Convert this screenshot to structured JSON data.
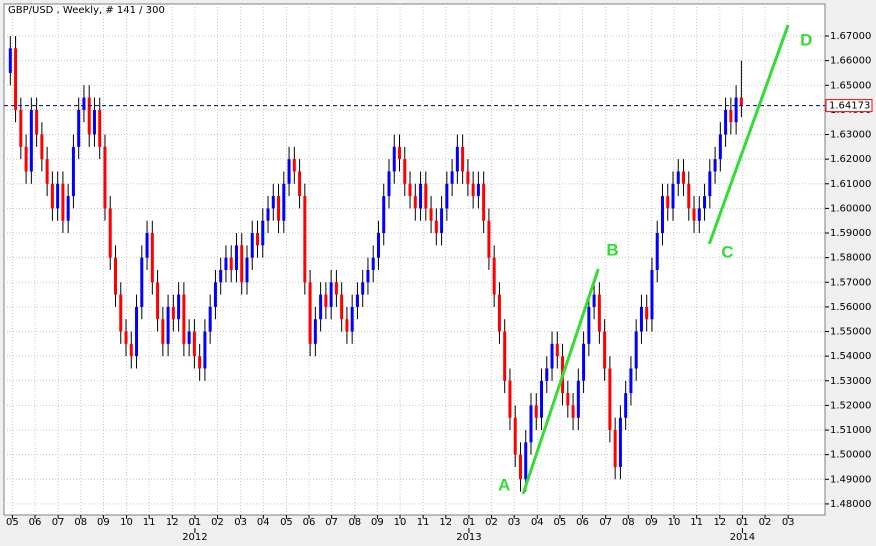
{
  "chart_data": {
    "type": "candlestick",
    "title": "GBP/USD , Weekly, # 141 / 300",
    "up_color": "#0000ff",
    "down_color": "#ff0000",
    "wick_color": "#000000",
    "grid": true,
    "open": [
      1.655,
      1.665,
      1.64,
      1.625,
      1.615,
      1.64,
      1.63,
      1.62,
      1.61,
      1.6,
      1.61,
      1.595,
      1.605,
      1.625,
      1.64,
      1.645,
      1.63,
      1.64,
      1.625,
      1.6,
      1.58,
      1.565,
      1.55,
      1.545,
      1.54,
      1.56,
      1.58,
      1.59,
      1.57,
      1.555,
      1.545,
      1.56,
      1.555,
      1.565,
      1.545,
      1.55,
      1.54,
      1.535,
      1.55,
      1.56,
      1.57,
      1.575,
      1.58,
      1.575,
      1.585,
      1.57,
      1.58,
      1.59,
      1.585,
      1.595,
      1.6,
      1.605,
      1.595,
      1.61,
      1.62,
      1.615,
      1.605,
      1.57,
      1.545,
      1.555,
      1.565,
      1.56,
      1.57,
      1.565,
      1.555,
      1.55,
      1.56,
      1.565,
      1.57,
      1.575,
      1.58,
      1.59,
      1.605,
      1.615,
      1.625,
      1.62,
      1.61,
      1.605,
      1.6,
      1.61,
      1.6,
      1.595,
      1.59,
      1.6,
      1.61,
      1.615,
      1.625,
      1.615,
      1.61,
      1.605,
      1.61,
      1.595,
      1.58,
      1.565,
      1.55,
      1.53,
      1.515,
      1.5,
      1.49,
      1.505,
      1.52,
      1.515,
      1.53,
      1.535,
      1.545,
      1.54,
      1.525,
      1.52,
      1.515,
      1.53,
      1.545,
      1.56,
      1.565,
      1.55,
      1.535,
      1.51,
      1.495,
      1.515,
      1.525,
      1.535,
      1.55,
      1.56,
      1.555,
      1.575,
      1.59,
      1.605,
      1.6,
      1.61,
      1.615,
      1.61,
      1.6,
      1.595,
      1.6,
      1.605,
      1.615,
      1.62,
      1.63,
      1.64,
      1.635,
      1.645
    ],
    "high": [
      1.67,
      1.67,
      1.645,
      1.63,
      1.645,
      1.645,
      1.635,
      1.625,
      1.615,
      1.615,
      1.615,
      1.61,
      1.63,
      1.645,
      1.65,
      1.65,
      1.645,
      1.645,
      1.63,
      1.605,
      1.585,
      1.57,
      1.555,
      1.55,
      1.565,
      1.585,
      1.595,
      1.595,
      1.575,
      1.56,
      1.565,
      1.565,
      1.57,
      1.57,
      1.555,
      1.555,
      1.545,
      1.555,
      1.565,
      1.575,
      1.58,
      1.585,
      1.585,
      1.59,
      1.59,
      1.585,
      1.595,
      1.595,
      1.6,
      1.605,
      1.61,
      1.61,
      1.615,
      1.625,
      1.625,
      1.62,
      1.61,
      1.575,
      1.56,
      1.57,
      1.57,
      1.575,
      1.575,
      1.57,
      1.56,
      1.565,
      1.57,
      1.575,
      1.58,
      1.585,
      1.595,
      1.61,
      1.62,
      1.63,
      1.63,
      1.625,
      1.615,
      1.61,
      1.615,
      1.615,
      1.605,
      1.6,
      1.605,
      1.615,
      1.62,
      1.63,
      1.63,
      1.62,
      1.615,
      1.615,
      1.615,
      1.6,
      1.585,
      1.57,
      1.555,
      1.535,
      1.52,
      1.505,
      1.51,
      1.525,
      1.525,
      1.535,
      1.54,
      1.55,
      1.55,
      1.545,
      1.53,
      1.525,
      1.535,
      1.55,
      1.565,
      1.57,
      1.57,
      1.555,
      1.54,
      1.515,
      1.52,
      1.53,
      1.54,
      1.555,
      1.565,
      1.565,
      1.58,
      1.595,
      1.61,
      1.61,
      1.615,
      1.62,
      1.62,
      1.615,
      1.605,
      1.605,
      1.61,
      1.62,
      1.625,
      1.635,
      1.645,
      1.645,
      1.65,
      1.66
    ],
    "low": [
      1.65,
      1.635,
      1.62,
      1.61,
      1.61,
      1.625,
      1.615,
      1.605,
      1.595,
      1.595,
      1.59,
      1.59,
      1.6,
      1.62,
      1.635,
      1.625,
      1.625,
      1.62,
      1.595,
      1.575,
      1.56,
      1.545,
      1.54,
      1.535,
      1.535,
      1.555,
      1.575,
      1.565,
      1.55,
      1.54,
      1.54,
      1.55,
      1.55,
      1.54,
      1.54,
      1.535,
      1.53,
      1.53,
      1.545,
      1.555,
      1.565,
      1.57,
      1.57,
      1.57,
      1.565,
      1.565,
      1.575,
      1.58,
      1.58,
      1.59,
      1.595,
      1.59,
      1.59,
      1.605,
      1.61,
      1.6,
      1.565,
      1.54,
      1.54,
      1.55,
      1.555,
      1.555,
      1.56,
      1.55,
      1.545,
      1.545,
      1.555,
      1.56,
      1.565,
      1.57,
      1.575,
      1.585,
      1.6,
      1.61,
      1.615,
      1.605,
      1.6,
      1.595,
      1.595,
      1.595,
      1.59,
      1.585,
      1.585,
      1.595,
      1.605,
      1.61,
      1.61,
      1.605,
      1.6,
      1.6,
      1.59,
      1.575,
      1.56,
      1.545,
      1.525,
      1.51,
      1.495,
      1.485,
      1.485,
      1.5,
      1.51,
      1.51,
      1.525,
      1.53,
      1.535,
      1.52,
      1.515,
      1.51,
      1.51,
      1.525,
      1.54,
      1.555,
      1.545,
      1.53,
      1.505,
      1.49,
      1.49,
      1.51,
      1.52,
      1.53,
      1.545,
      1.55,
      1.55,
      1.57,
      1.585,
      1.595,
      1.595,
      1.605,
      1.605,
      1.595,
      1.59,
      1.59,
      1.595,
      1.6,
      1.61,
      1.615,
      1.625,
      1.63,
      1.63,
      1.637
    ],
    "close": [
      1.665,
      1.64,
      1.625,
      1.615,
      1.64,
      1.63,
      1.62,
      1.61,
      1.6,
      1.61,
      1.595,
      1.605,
      1.625,
      1.64,
      1.645,
      1.63,
      1.64,
      1.625,
      1.6,
      1.58,
      1.565,
      1.55,
      1.545,
      1.54,
      1.56,
      1.58,
      1.59,
      1.57,
      1.555,
      1.545,
      1.56,
      1.555,
      1.565,
      1.545,
      1.55,
      1.54,
      1.535,
      1.55,
      1.56,
      1.57,
      1.575,
      1.58,
      1.575,
      1.585,
      1.57,
      1.58,
      1.59,
      1.585,
      1.595,
      1.6,
      1.605,
      1.595,
      1.61,
      1.62,
      1.615,
      1.605,
      1.57,
      1.545,
      1.555,
      1.565,
      1.56,
      1.57,
      1.565,
      1.555,
      1.55,
      1.56,
      1.565,
      1.57,
      1.575,
      1.58,
      1.59,
      1.605,
      1.615,
      1.625,
      1.62,
      1.61,
      1.605,
      1.6,
      1.61,
      1.6,
      1.595,
      1.59,
      1.6,
      1.61,
      1.615,
      1.625,
      1.615,
      1.61,
      1.605,
      1.61,
      1.595,
      1.58,
      1.565,
      1.55,
      1.53,
      1.515,
      1.5,
      1.49,
      1.505,
      1.52,
      1.515,
      1.53,
      1.535,
      1.545,
      1.54,
      1.525,
      1.52,
      1.515,
      1.53,
      1.545,
      1.56,
      1.565,
      1.55,
      1.535,
      1.51,
      1.495,
      1.515,
      1.525,
      1.535,
      1.55,
      1.56,
      1.555,
      1.575,
      1.59,
      1.605,
      1.6,
      1.61,
      1.615,
      1.61,
      1.6,
      1.595,
      1.6,
      1.605,
      1.615,
      1.62,
      1.63,
      1.64,
      1.635,
      1.645,
      1.642
    ],
    "xlim": [
      -1.2,
      154.9
    ],
    "ylim": [
      1.4755,
      1.683
    ],
    "xticks": [
      {
        "value": 0.4,
        "label": "05"
      },
      {
        "value": 4.7,
        "label": "06"
      },
      {
        "value": 9.1,
        "label": "07"
      },
      {
        "value": 13.4,
        "label": "08"
      },
      {
        "value": 17.7,
        "label": "09"
      },
      {
        "value": 22.1,
        "label": "10"
      },
      {
        "value": 26.4,
        "label": "11"
      },
      {
        "value": 30.8,
        "label": "12"
      },
      {
        "value": 35.1,
        "label": "01"
      },
      {
        "value": 39.4,
        "label": "02"
      },
      {
        "value": 43.8,
        "label": "03"
      },
      {
        "value": 48.1,
        "label": "04"
      },
      {
        "value": 52.5,
        "label": "05"
      },
      {
        "value": 56.8,
        "label": "06"
      },
      {
        "value": 61.1,
        "label": "07"
      },
      {
        "value": 65.5,
        "label": "08"
      },
      {
        "value": 69.8,
        "label": "09"
      },
      {
        "value": 74.1,
        "label": "10"
      },
      {
        "value": 78.5,
        "label": "11"
      },
      {
        "value": 82.8,
        "label": "12"
      },
      {
        "value": 87.2,
        "label": "01"
      },
      {
        "value": 91.5,
        "label": "02"
      },
      {
        "value": 95.8,
        "label": "03"
      },
      {
        "value": 100.2,
        "label": "04"
      },
      {
        "value": 104.5,
        "label": "05"
      },
      {
        "value": 108.8,
        "label": "06"
      },
      {
        "value": 113.2,
        "label": "07"
      },
      {
        "value": 117.5,
        "label": "08"
      },
      {
        "value": 121.9,
        "label": "09"
      },
      {
        "value": 126.2,
        "label": "10"
      },
      {
        "value": 130.5,
        "label": "11"
      },
      {
        "value": 134.9,
        "label": "12"
      },
      {
        "value": 139.2,
        "label": "01"
      },
      {
        "value": 143.5,
        "label": "02"
      },
      {
        "value": 147.9,
        "label": "03"
      }
    ],
    "year_labels": [
      {
        "value": 35.1,
        "label": "2012"
      },
      {
        "value": 87.2,
        "label": "2013"
      },
      {
        "value": 139.2,
        "label": "2014"
      }
    ],
    "yticks": [
      {
        "value": 1.48,
        "label": "1.48000"
      },
      {
        "value": 1.49,
        "label": "1.49000"
      },
      {
        "value": 1.5,
        "label": "1.50000"
      },
      {
        "value": 1.51,
        "label": "1.51000"
      },
      {
        "value": 1.52,
        "label": "1.52000"
      },
      {
        "value": 1.53,
        "label": "1.53000"
      },
      {
        "value": 1.54,
        "label": "1.54000"
      },
      {
        "value": 1.55,
        "label": "1.55000"
      },
      {
        "value": 1.56,
        "label": "1.56000"
      },
      {
        "value": 1.57,
        "label": "1.57000"
      },
      {
        "value": 1.58,
        "label": "1.58000"
      },
      {
        "value": 1.59,
        "label": "1.59000"
      },
      {
        "value": 1.6,
        "label": "1.60000"
      },
      {
        "value": 1.61,
        "label": "1.61000"
      },
      {
        "value": 1.62,
        "label": "1.62000"
      },
      {
        "value": 1.63,
        "label": "1.63000"
      },
      {
        "value": 1.64,
        "label": "1.64000"
      },
      {
        "value": 1.65,
        "label": "1.65000"
      },
      {
        "value": 1.66,
        "label": "1.66000"
      },
      {
        "value": 1.67,
        "label": "1.67000"
      }
    ],
    "current_price": {
      "value": 1.64173,
      "label": "1.64173",
      "color": "#00008b"
    },
    "trendlines": [
      {
        "color": "#33dd33",
        "x": [
          97.5,
          111.8
        ],
        "y": [
          1.4841,
          1.5754
        ],
        "labels": [
          "A",
          "B"
        ]
      },
      {
        "color": "#33dd33",
        "x": [
          132.9,
          147.9
        ],
        "y": [
          1.5856,
          1.6745
        ],
        "labels": [
          "C",
          "D"
        ]
      }
    ]
  }
}
